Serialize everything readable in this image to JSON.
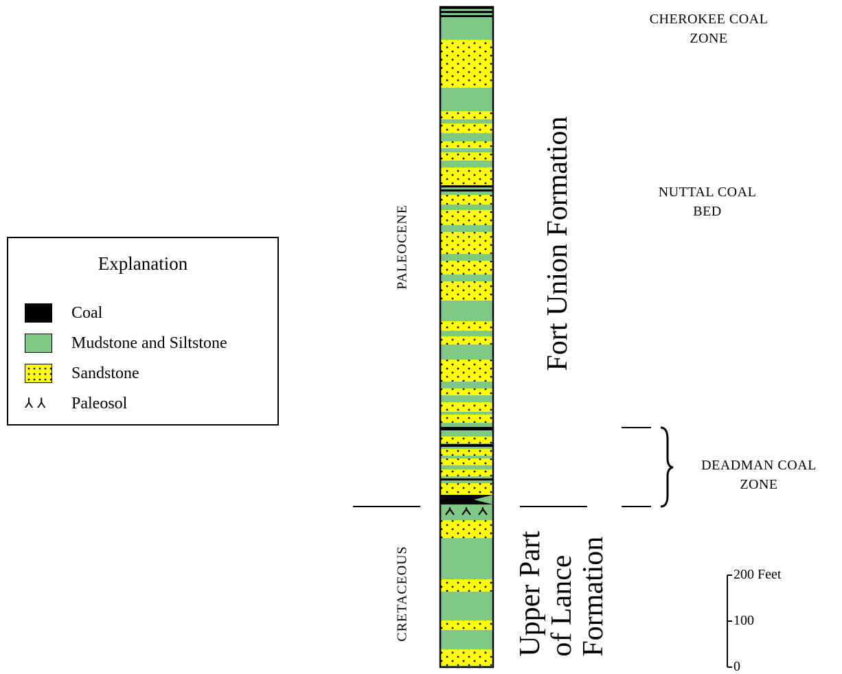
{
  "legend": {
    "title": "Explanation",
    "items": [
      {
        "label": "Coal",
        "pattern": "coal"
      },
      {
        "label": "Mudstone and Siltstone",
        "pattern": "mudstone"
      },
      {
        "label": "Sandstone",
        "pattern": "sandstone"
      },
      {
        "label": "Paleosol",
        "pattern": "paleosol"
      }
    ]
  },
  "epochs": {
    "upper": "PALEOCENE",
    "lower": "CRETACEOUS"
  },
  "formations": {
    "upper": "Fort Union Formation",
    "lower": "Upper Part\nof Lance\nFormation"
  },
  "zones": {
    "cherokee": "CHEROKEE COAL\nZONE",
    "nuttal": "NUTTAL COAL\nBED",
    "deadman": "DEADMAN COAL\nZONE"
  },
  "scale": {
    "labels": [
      "200 Feet",
      "100",
      "0"
    ]
  },
  "colors": {
    "mudstone": "#7dc883",
    "sandstone": "#ffff00",
    "coal": "#000000"
  }
}
